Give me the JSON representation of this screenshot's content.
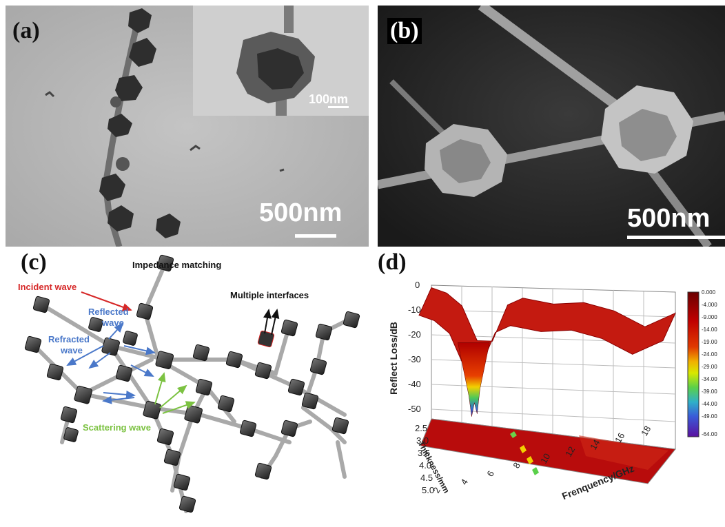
{
  "panel_a": {
    "label": "(a)",
    "scale_main": "500nm",
    "scale_inset": "100nm"
  },
  "panel_b": {
    "label": "(b)",
    "scale": "500nm"
  },
  "panel_c": {
    "label": "(c)",
    "impedance_matching": "Impedance matching",
    "incident_wave": "Incident wave",
    "reflected_wave_1": "Reflected",
    "reflected_wave_2": "wave",
    "refracted_wave_1": "Refracted",
    "refracted_wave_2": "wave",
    "multiple_interfaces": "Multiple interfaces",
    "scattering_wave": "Scattering wave",
    "colors": {
      "incident": "#d62828",
      "reflected": "#4a78c9",
      "scattering": "#7cc242"
    }
  },
  "panel_d": {
    "label": "(d)"
  },
  "chart_data": {
    "type": "surface3d",
    "zlabel": "Reflect Loss/dB",
    "xlabel": "Frenquency/GHz",
    "ylabel": "Thickness/mm",
    "z_ticks": [
      "0",
      "-10",
      "-20",
      "-30",
      "-40",
      "-50"
    ],
    "x_ticks": [
      "2",
      "4",
      "6",
      "8",
      "10",
      "12",
      "14",
      "16",
      "18"
    ],
    "y_ticks": [
      "2.5",
      "3.0",
      "3.5",
      "4.0",
      "4.5",
      "5.0"
    ],
    "zlim": [
      -54,
      0
    ],
    "colorbar_ticks": [
      "0.000",
      "-4.000",
      "-9.000",
      "-14.00",
      "-19.00",
      "-24.00",
      "-29.00",
      "-34.00",
      "-39.00",
      "-44.00",
      "-49.00",
      "-64.00"
    ],
    "profile": {
      "x": [
        2,
        3,
        4,
        5,
        6,
        7,
        8,
        10,
        12,
        14,
        16,
        18
      ],
      "rl": [
        -1,
        -3,
        -8,
        -53,
        -22,
        -7,
        -4,
        -6,
        -5,
        -8,
        -14,
        -8
      ]
    }
  }
}
